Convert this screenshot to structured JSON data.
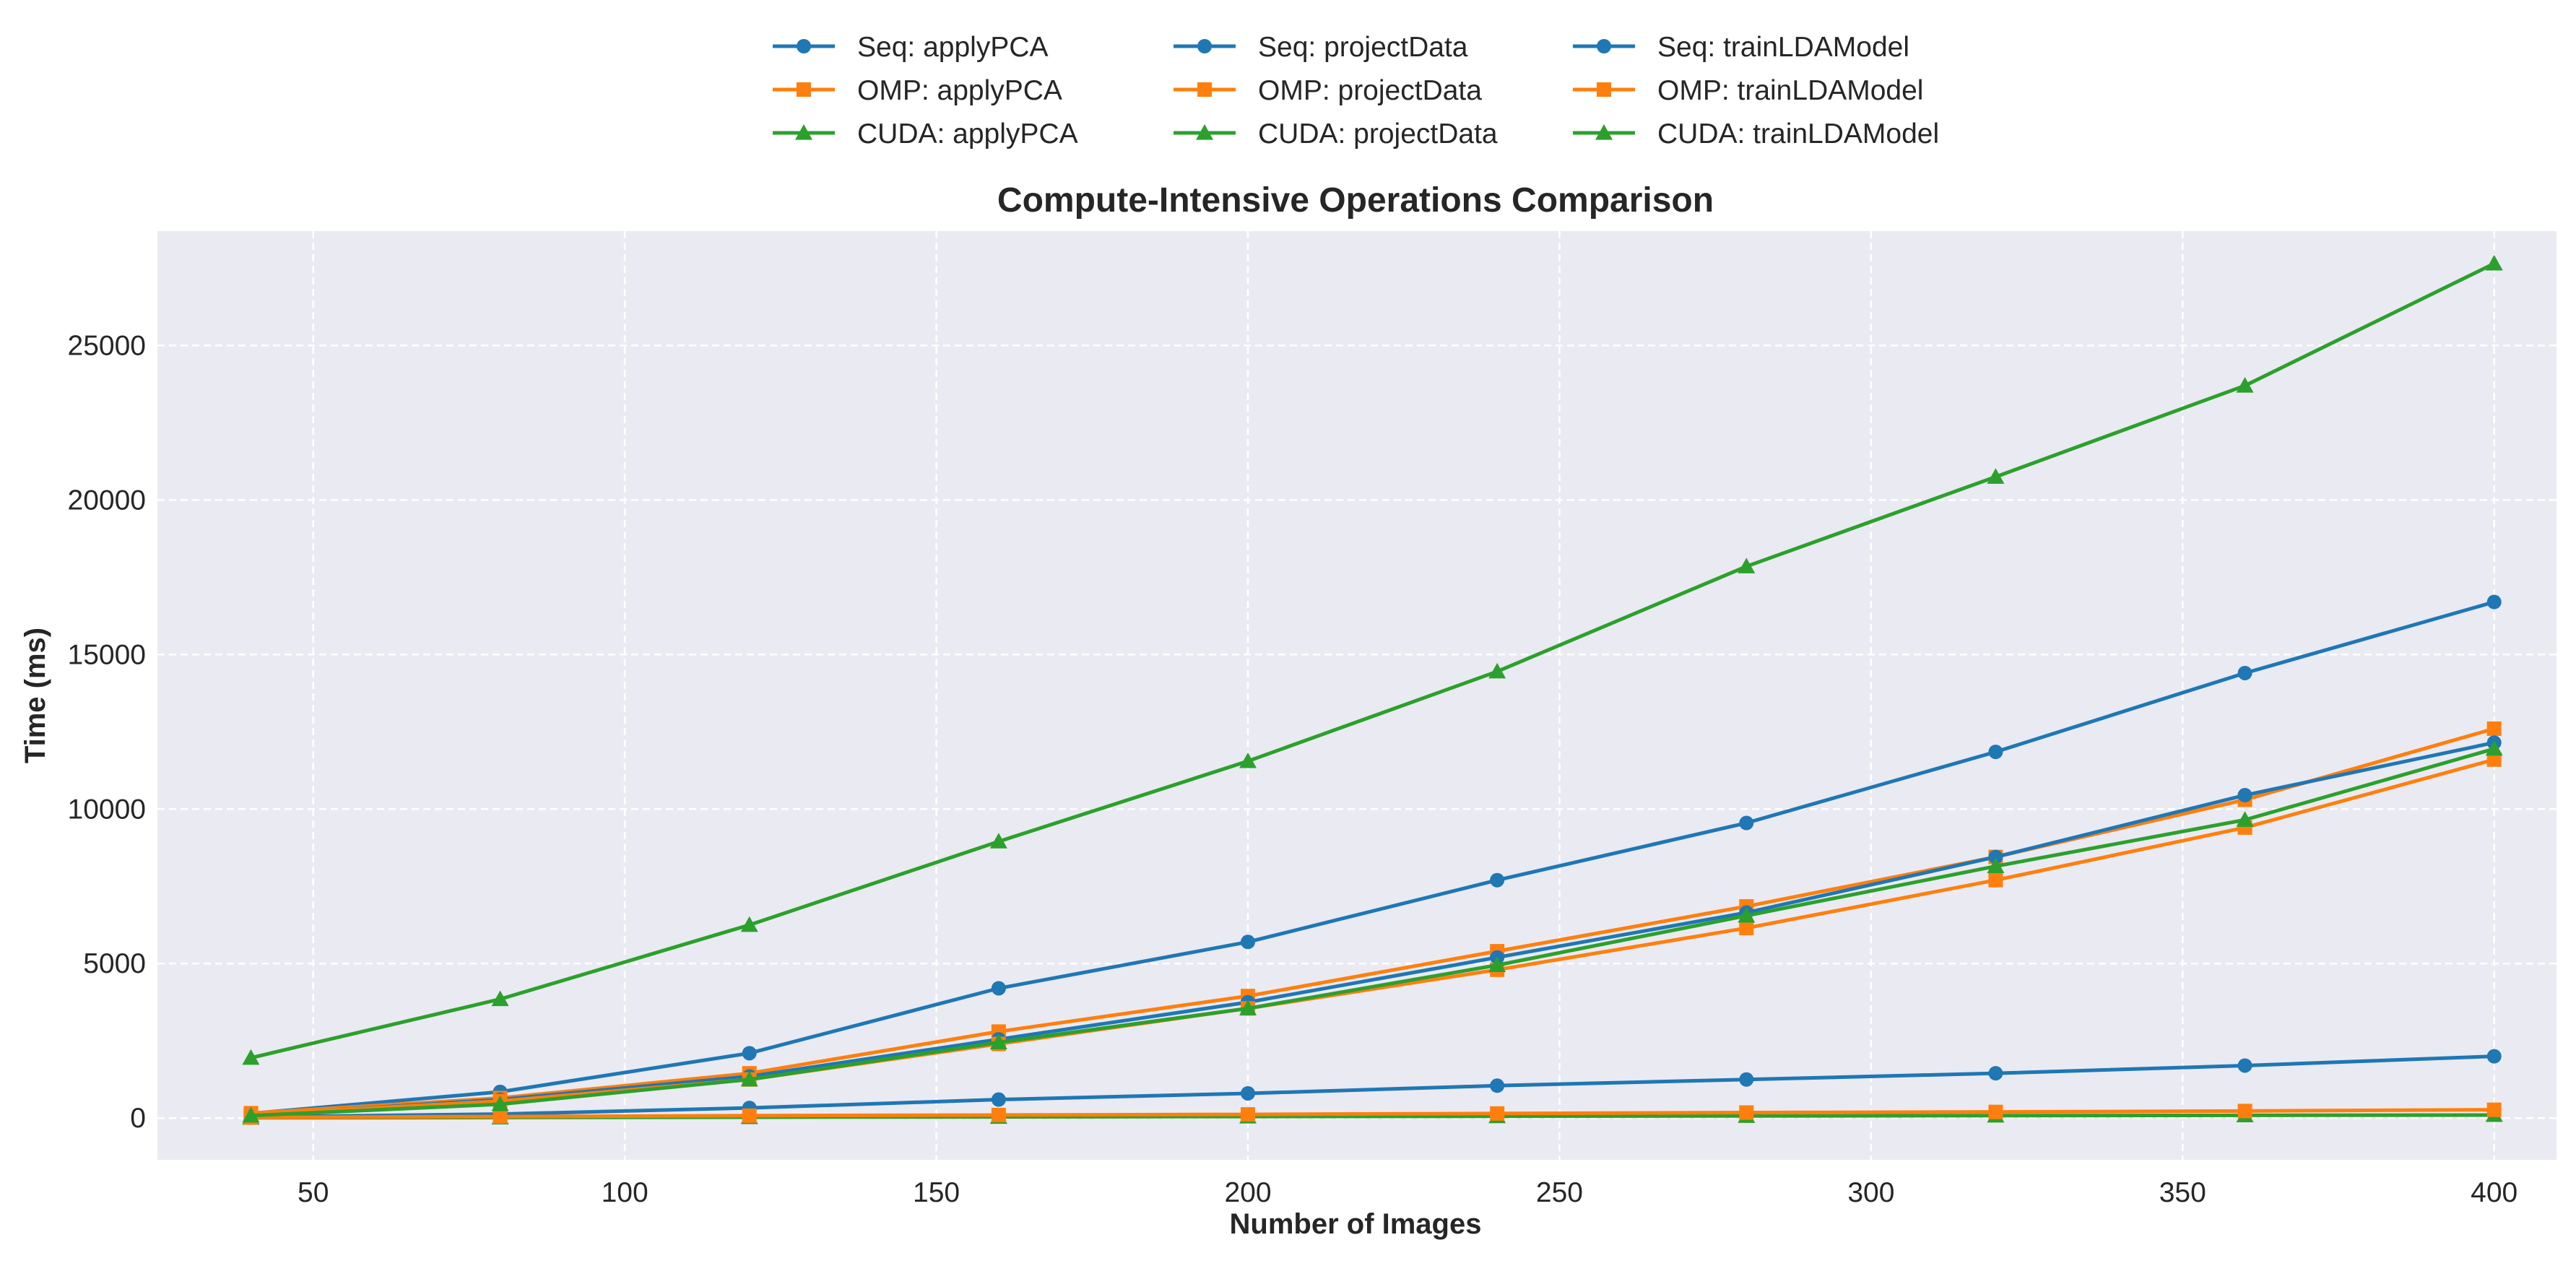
{
  "chart_data": {
    "type": "line",
    "title": "Compute-Intensive Operations Comparison",
    "xlabel": "Number of Images",
    "ylabel": "Time (ms)",
    "xlim": [
      25,
      410
    ],
    "ylim": [
      -1350,
      28700
    ],
    "x_ticks": [
      50,
      100,
      150,
      200,
      250,
      300,
      350,
      400
    ],
    "y_ticks": [
      0,
      5000,
      10000,
      15000,
      20000,
      25000
    ],
    "grid": true,
    "legend_position": "top-center",
    "colors": {
      "Seq": "#1f77b4",
      "OMP": "#ff7f0e",
      "CUDA": "#2ca02c",
      "plot_bg": "#eaeaf2",
      "grid": "#ffffff"
    },
    "x": [
      40,
      80,
      120,
      160,
      200,
      240,
      280,
      320,
      360,
      400
    ],
    "series": [
      {
        "name": "Seq: applyPCA",
        "color": "#1f77b4",
        "marker": "circle",
        "values": [
          150,
          850,
          2100,
          4200,
          5700,
          7700,
          9550,
          11850,
          14400,
          16700
        ]
      },
      {
        "name": "OMP: applyPCA",
        "color": "#ff7f0e",
        "marker": "square",
        "values": [
          160,
          650,
          1450,
          2800,
          3950,
          5400,
          6850,
          8450,
          10300,
          12600
        ]
      },
      {
        "name": "CUDA: applyPCA",
        "color": "#2ca02c",
        "marker": "triangle",
        "values": [
          1950,
          3850,
          6250,
          8950,
          11550,
          14450,
          17850,
          20750,
          23700,
          27650
        ]
      },
      {
        "name": "Seq: projectData",
        "color": "#1f77b4",
        "marker": "circle",
        "values": [
          100,
          600,
          1350,
          2550,
          3750,
          5200,
          6650,
          8450,
          10450,
          12150
        ]
      },
      {
        "name": "OMP: projectData",
        "color": "#ff7f0e",
        "marker": "square",
        "values": [
          120,
          550,
          1250,
          2400,
          3550,
          4800,
          6150,
          7700,
          9400,
          11600
        ]
      },
      {
        "name": "CUDA: projectData",
        "color": "#2ca02c",
        "marker": "triangle",
        "values": [
          10,
          20,
          30,
          40,
          50,
          60,
          70,
          80,
          90,
          100
        ]
      },
      {
        "name": "Seq: trainLDAModel",
        "color": "#1f77b4",
        "marker": "circle",
        "values": [
          40,
          130,
          330,
          600,
          800,
          1050,
          1250,
          1450,
          1700,
          2000
        ]
      },
      {
        "name": "OMP: trainLDAModel",
        "color": "#ff7f0e",
        "marker": "square",
        "values": [
          20,
          50,
          80,
          100,
          120,
          150,
          180,
          200,
          230,
          270
        ]
      },
      {
        "name": "CUDA: trainLDAModel",
        "color": "#2ca02c",
        "marker": "triangle",
        "values": [
          80,
          450,
          1250,
          2450,
          3550,
          4950,
          6550,
          8150,
          9650,
          11950
        ]
      }
    ]
  }
}
